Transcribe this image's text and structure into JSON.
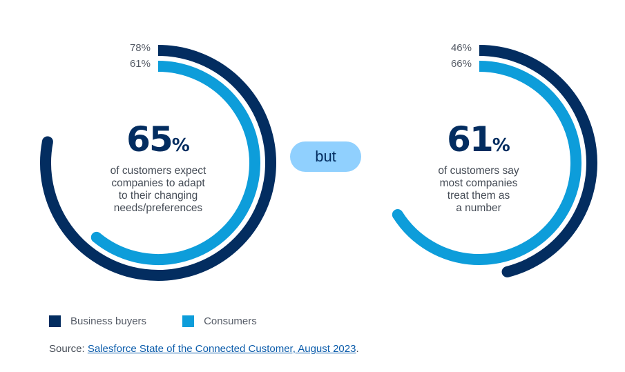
{
  "colors": {
    "business_buyers": "#032d60",
    "consumers": "#0d9dda",
    "pill_bg": "#90d0fe",
    "text_dark": "#032d60"
  },
  "chart_data": [
    {
      "type": "radial-bar",
      "title": "65%",
      "headline_value": 65,
      "description": [
        "of customers expect",
        "companies to adapt",
        "to their changing",
        "needs/preferences"
      ],
      "series": [
        {
          "name": "Business buyers",
          "value": 78,
          "label": "78%"
        },
        {
          "name": "Consumers",
          "value": 61,
          "label": "61%"
        }
      ],
      "range": [
        0,
        100
      ]
    },
    {
      "type": "radial-bar",
      "title": "61%",
      "headline_value": 61,
      "description": [
        "of customers say",
        "most companies",
        "treat them as",
        "a number"
      ],
      "series": [
        {
          "name": "Business buyers",
          "value": 46,
          "label": "46%"
        },
        {
          "name": "Consumers",
          "value": 66,
          "label": "66%"
        }
      ],
      "range": [
        0,
        100
      ]
    }
  ],
  "left": {
    "big_number": "65",
    "pct_sign": "%",
    "desc": [
      "of customers expect",
      "companies to adapt",
      "to their changing",
      "needs/preferences"
    ],
    "labels": [
      "78%",
      "61%"
    ]
  },
  "right": {
    "big_number": "61",
    "pct_sign": "%",
    "desc": [
      "of customers say",
      "most companies",
      "treat them as",
      "a number"
    ],
    "labels": [
      "46%",
      "66%"
    ]
  },
  "connector": "but",
  "legend": [
    {
      "label": "Business buyers",
      "color": "#032d60"
    },
    {
      "label": "Consumers",
      "color": "#0d9dda"
    }
  ],
  "source": {
    "prefix": "Source: ",
    "link_text": "Salesforce State of the Connected Customer, August 2023",
    "suffix": "."
  }
}
